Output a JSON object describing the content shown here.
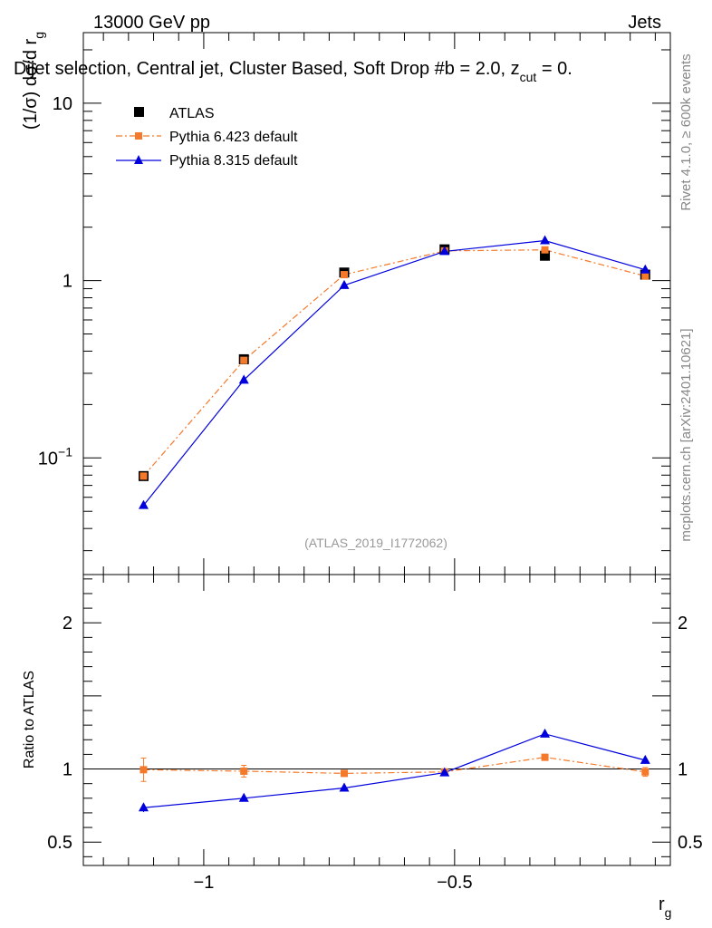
{
  "header": {
    "left": "13000 GeV pp",
    "right": "Jets"
  },
  "side_labels": {
    "rivet": "Rivet 4.1.0, ≥ 600k events",
    "mcplots": "mcplots.cern.ch [arXiv:2401.10621]"
  },
  "watermark": "(ATLAS_2019_I1772062)",
  "colors": {
    "data": "#000000",
    "pythia6": "#f5792a",
    "pythia8": "#0000dd",
    "watermark": "#999999"
  },
  "chart_data": [
    {
      "type": "line",
      "title": "Dijet selection, Central jet, Cluster Based, Soft Drop #b = 2.0, z_cut = 0.",
      "title_parts": {
        "main": "Dijet selection, Central jet, Cluster Based, Soft Drop #b",
        "eq": " = 2.0, z",
        "sub": "cut",
        "tail": " = 0."
      },
      "ylabel": "(1/σ) dσ/d r_g",
      "ylabel_parts": {
        "main": "(1/σ) dσ/d r",
        "sub": "g"
      },
      "yscale": "log",
      "xlim": [
        -1.24,
        -0.07
      ],
      "ylim": [
        0.022,
        25
      ],
      "y_ticks": [
        {
          "value": 0.1,
          "base": "10",
          "exp": "−1"
        },
        {
          "value": 1,
          "label": "1"
        },
        {
          "value": 10,
          "label": "10"
        }
      ],
      "x": [
        -1.12,
        -0.92,
        -0.72,
        -0.52,
        -0.32,
        -0.12
      ],
      "series": [
        {
          "name": "ATLAS",
          "values": [
            0.079,
            0.36,
            1.11,
            1.5,
            1.38,
            1.08
          ],
          "errors": [
            0.004,
            0.01,
            0.02,
            0.02,
            0.02,
            0.02
          ],
          "marker": "square",
          "line": "none"
        },
        {
          "name": "Pythia 6.423 default",
          "values": [
            0.079,
            0.355,
            1.08,
            1.47,
            1.49,
            1.06
          ],
          "marker": "small-square",
          "line": "dashdot"
        },
        {
          "name": "Pythia 8.315 default",
          "values": [
            0.054,
            0.275,
            0.94,
            1.46,
            1.68,
            1.15
          ],
          "marker": "triangle",
          "line": "solid"
        }
      ],
      "legend_position": "top-left"
    },
    {
      "type": "line",
      "ylabel": "Ratio to ATLAS",
      "xlabel": "r_g",
      "xlabel_parts": {
        "main": "r",
        "sub": "g"
      },
      "xlim": [
        -1.24,
        -0.07
      ],
      "ylim": [
        0.34,
        2.33
      ],
      "x_ticks": [
        {
          "value": -1,
          "label": "−1"
        },
        {
          "value": -0.5,
          "label": "−0.5"
        }
      ],
      "y_ticks": [
        {
          "value": 0.5,
          "label": "0.5"
        },
        {
          "value": 1,
          "label": "1"
        },
        {
          "value": 2,
          "label": "2"
        }
      ],
      "x": [
        -1.12,
        -0.92,
        -0.72,
        -0.52,
        -0.32,
        -0.12
      ],
      "reference": 1,
      "series": [
        {
          "name": "Pythia 6.423 default",
          "values": [
            0.995,
            0.985,
            0.97,
            0.98,
            1.08,
            0.98
          ],
          "errors": [
            0.08,
            0.04,
            0.02,
            0.02,
            0.02,
            0.03
          ]
        },
        {
          "name": "Pythia 8.315 default",
          "values": [
            0.735,
            0.8,
            0.87,
            0.975,
            1.24,
            1.06
          ],
          "errors": [
            0.03,
            0.01,
            0.01,
            0.01,
            0.015,
            0.01
          ]
        }
      ]
    }
  ]
}
